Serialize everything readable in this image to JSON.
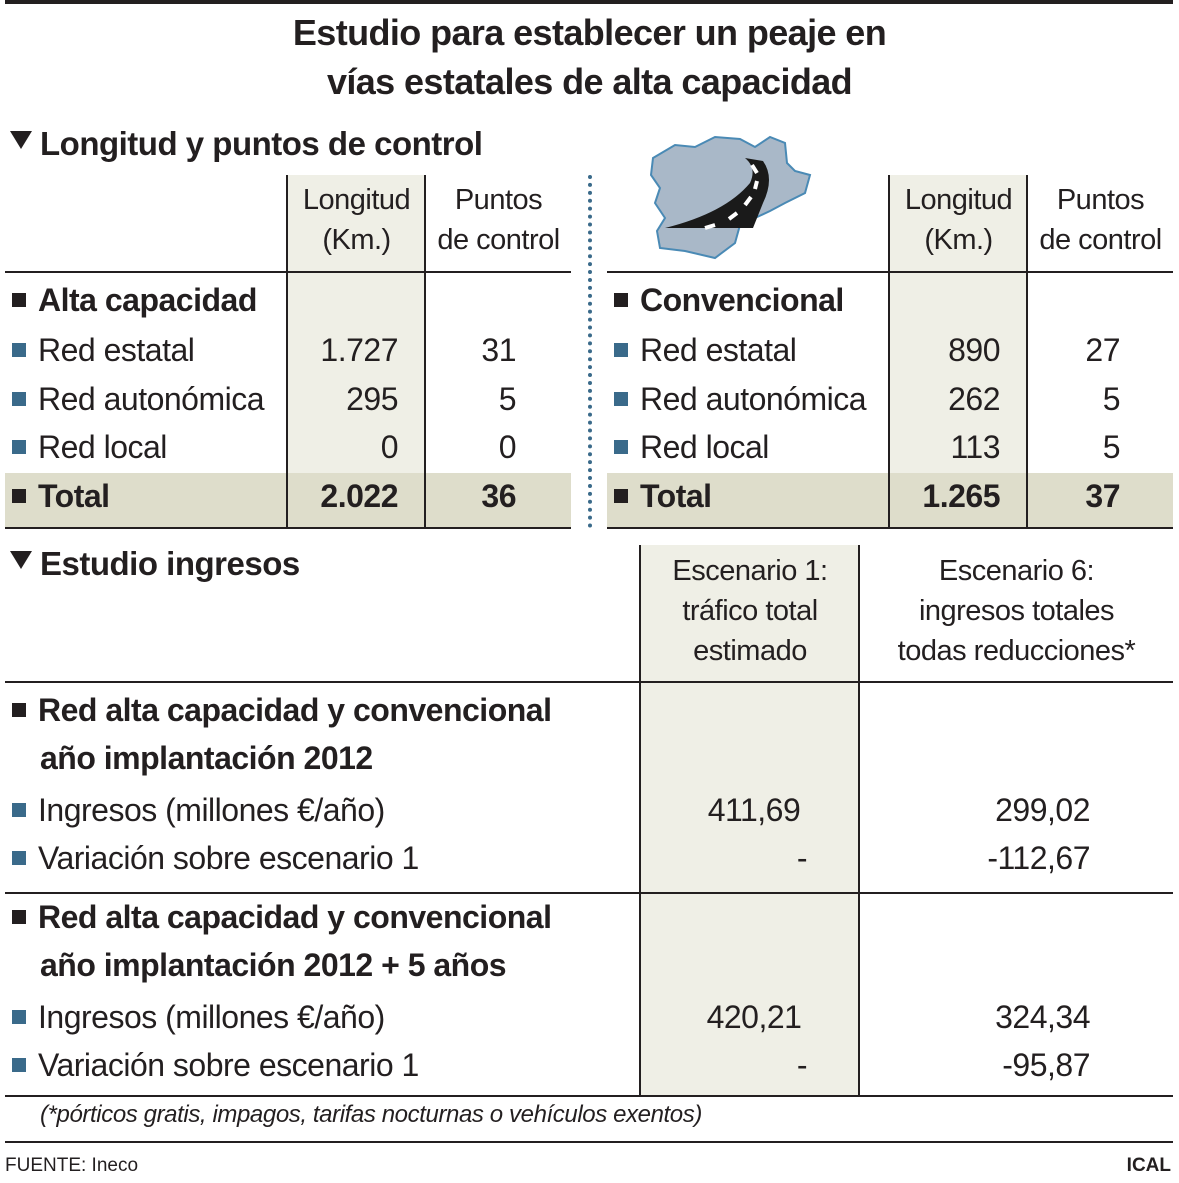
{
  "title": [
    "Estudio para establecer un peaje en",
    "vías estatales de alta capacidad"
  ],
  "section1": {
    "heading": "Longitud y puntos de control",
    "col_headers": [
      [
        "Longitud",
        "(Km.)"
      ],
      [
        "Puntos",
        "de control"
      ]
    ],
    "left": {
      "group": "Alta capacidad",
      "rows": [
        {
          "label": "Red estatal",
          "km": "1.727",
          "pc": "31"
        },
        {
          "label": "Red autonómica",
          "km": "295",
          "pc": "5"
        },
        {
          "label": "Red local",
          "km": "0",
          "pc": "0"
        }
      ],
      "total": {
        "label": "Total",
        "km": "2.022",
        "pc": "36"
      }
    },
    "right": {
      "group": "Convencional",
      "rows": [
        {
          "label": "Red estatal",
          "km": "890",
          "pc": "27"
        },
        {
          "label": "Red autonómica",
          "km": "262",
          "pc": "5"
        },
        {
          "label": "Red local",
          "km": "113",
          "pc": "5"
        }
      ],
      "total": {
        "label": "Total",
        "km": "1.265",
        "pc": "37"
      }
    },
    "map_icon": "castilla-leon-road-map-icon"
  },
  "section2": {
    "heading": "Estudio ingresos",
    "col_headers": [
      [
        "Escenario 1:",
        "tráfico total",
        "estimado"
      ],
      [
        "Escenario 6:",
        "ingresos totales",
        "todas reducciones*"
      ]
    ],
    "groups": [
      {
        "title": [
          "Red alta capacidad y convencional",
          "año implantación 2012"
        ],
        "rows": [
          {
            "label": "Ingresos (millones €/año)",
            "e1": "411,69",
            "e6": "299,02"
          },
          {
            "label": "Variación sobre escenario 1",
            "e1": "-",
            "e6": "-112,67"
          }
        ]
      },
      {
        "title": [
          "Red alta capacidad y convencional",
          "año implantación 2012 + 5 años"
        ],
        "rows": [
          {
            "label": "Ingresos (millones €/año)",
            "e1": "420,21",
            "e6": "324,34"
          },
          {
            "label": "Variación sobre escenario 1",
            "e1": "-",
            "e6": "-95,87"
          }
        ]
      }
    ],
    "footnote": "(*pórticos gratis, impagos, tarifas nocturnas o vehículos exentos)"
  },
  "footer": {
    "source": "FUENTE: Ineco",
    "agency": "ICAL"
  },
  "colors": {
    "bullet_blue": "#3a6a8a",
    "shade": "#efefe6",
    "total_band": "#deddcb",
    "map_fill": "#a9b8c8"
  }
}
